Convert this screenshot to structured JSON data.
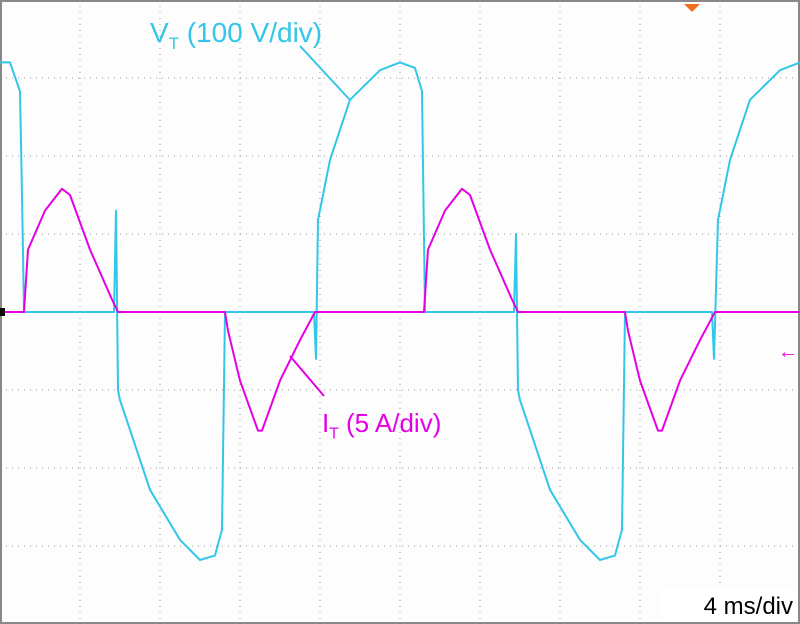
{
  "chart_data": {
    "type": "line",
    "xlim": [
      0,
      40
    ],
    "ylim": [
      -400,
      400
    ],
    "y2lim": [
      -20,
      20
    ],
    "grid": true,
    "series": [
      {
        "color": "#33c6e8",
        "x": [
          0,
          0.5,
          1.0,
          1.1,
          1.2,
          5.7,
          5.8,
          5.9,
          6.0,
          6.5,
          7.5,
          9.0,
          10.0,
          10.75,
          11.1,
          11.25,
          15.7,
          15.8,
          15.9,
          16.5,
          17.5,
          19.0,
          20.0,
          20.75,
          21.1,
          21.25,
          25.7,
          25.8,
          25.9,
          26.0,
          26.5,
          27.5,
          29.0,
          30.0,
          30.75,
          31.1,
          31.25,
          35.6,
          35.7,
          35.9,
          36.5,
          37.5,
          39.0,
          40.0
        ],
        "values": [
          320,
          320,
          283,
          150,
          0,
          0,
          130,
          -100,
          -113,
          -151,
          -228,
          -292,
          -318,
          -312,
          -279,
          0,
          0,
          -60,
          118,
          195,
          272,
          310,
          320,
          313,
          283,
          0,
          0,
          100,
          -100,
          -113,
          -151,
          -228,
          -292,
          -318,
          -312,
          -279,
          0,
          0,
          -60,
          118,
          195,
          272,
          310,
          320
        ]
      },
      {
        "color": "#e600e6",
        "axis": "y2",
        "x": [
          0,
          1.2,
          1.4,
          2.25,
          3.1,
          3.5,
          4.5,
          5.6,
          5.9,
          11.25,
          11.4,
          12.0,
          12.9,
          13.1,
          14.0,
          15.0,
          15.75,
          21.2,
          21.4,
          22.25,
          23.1,
          23.5,
          24.5,
          25.6,
          25.9,
          31.25,
          31.4,
          32.0,
          32.9,
          33.1,
          34.0,
          35.0,
          35.75,
          40
        ],
        "values": [
          0,
          0,
          4.0,
          6.5,
          7.9,
          7.5,
          4.0,
          0.8,
          0,
          0,
          -1.2,
          -4.4,
          -7.6,
          -7.6,
          -4.4,
          -1.8,
          0,
          0,
          4.0,
          6.5,
          7.9,
          7.5,
          4.0,
          0.8,
          0,
          0,
          -1.2,
          -4.4,
          -7.6,
          -7.6,
          -4.4,
          -1.8,
          0,
          0
        ]
      }
    ],
    "annotations": [
      {
        "main": "V",
        "sub": "T",
        "rest": " (100 V/div)",
        "color": "#33c6e8"
      },
      {
        "main": "I",
        "sub": "T",
        "rest": " (5 A/div)",
        "color": "#e600e6"
      },
      {
        "main": "4 ms/div",
        "color": "#000000"
      }
    ]
  }
}
